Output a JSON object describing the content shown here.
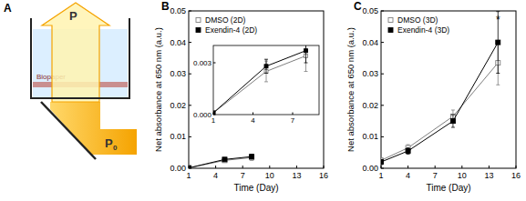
{
  "diagram": {
    "panel_label": "A",
    "output_label": "P",
    "input_label": "P",
    "input_subscript": "0",
    "layer_label": "Biopaper"
  },
  "chart_data": [
    {
      "type": "line",
      "title": "B",
      "x_label": "Time (Day)",
      "y_label": "Net absorbance at 650 nm (a.u.)",
      "xlim": [
        1,
        16
      ],
      "ylim": [
        0,
        0.05
      ],
      "xticks": [
        1,
        4,
        7,
        10,
        13,
        16
      ],
      "yticks": [
        {
          "value": 0,
          "label": "0.00"
        },
        {
          "value": 0.01,
          "label": "0.01"
        },
        {
          "value": 0.02,
          "label": "0.02"
        },
        {
          "value": 0.03,
          "label": "0.03"
        },
        {
          "value": 0.04,
          "label": "0.04"
        },
        {
          "value": 0.05,
          "label": "0.05"
        }
      ],
      "legend": "upper left",
      "x": [
        1,
        5,
        8
      ],
      "series": [
        {
          "name": "DMSO (2D)",
          "color": "#7f7f7f",
          "marker": "square_open",
          "line_style": "solid",
          "values": [
            0.0001,
            0.0025,
            0.0034
          ],
          "errors": [
            0.0001,
            0.0006,
            0.0009
          ]
        },
        {
          "name": "Exendin-4 (2D)",
          "color": "#000000",
          "marker": "square",
          "line_style": "solid",
          "values": [
            0.0001,
            0.0028,
            0.0037
          ],
          "errors": [
            0.0001,
            0.0004,
            0.0007
          ]
        }
      ],
      "inset": {
        "xlim": [
          1,
          9
        ],
        "ylim": [
          0,
          0.004
        ],
        "xticks": [
          1,
          4,
          7
        ],
        "yticks": [
          {
            "value": 0,
            "label": "0.000"
          },
          {
            "value": 0.003,
            "label": "0.003"
          }
        ]
      }
    },
    {
      "type": "line",
      "title": "C",
      "x_label": "Time (Day)",
      "y_label": "Net absorbance at 650 nm (a.u.)",
      "xlim": [
        1,
        16
      ],
      "ylim": [
        0,
        0.05
      ],
      "xticks": [
        1,
        4,
        7,
        10,
        13,
        16
      ],
      "yticks": [
        {
          "value": 0,
          "label": "0.00"
        },
        {
          "value": 0.01,
          "label": "0.01"
        },
        {
          "value": 0.02,
          "label": "0.02"
        },
        {
          "value": 0.03,
          "label": "0.03"
        },
        {
          "value": 0.04,
          "label": "0.04"
        },
        {
          "value": 0.05,
          "label": "0.05"
        }
      ],
      "legend": "upper left",
      "x": [
        1,
        4,
        9,
        14
      ],
      "series": [
        {
          "name": "DMSO (3D)",
          "color": "#7f7f7f",
          "marker": "square_open",
          "line_style": "solid",
          "values": [
            0.0025,
            0.0065,
            0.0165,
            0.0335
          ],
          "errors": [
            0.0008,
            0.001,
            0.002,
            0.007
          ]
        },
        {
          "name": "Exendin-4 (3D)",
          "color": "#000000",
          "marker": "square",
          "line_style": "solid",
          "values": [
            0.002,
            0.0055,
            0.015,
            0.04
          ],
          "errors": [
            0.0008,
            0.001,
            0.002,
            0.0098
          ]
        }
      ],
      "annotations": [
        {
          "text": "*",
          "x": 14,
          "y": 0.0475
        }
      ]
    }
  ]
}
